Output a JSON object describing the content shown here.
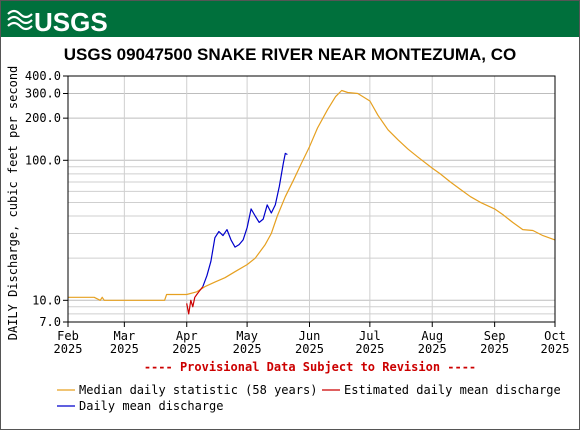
{
  "logo": {
    "text": "USGS",
    "band_color": "#00703c"
  },
  "chart_data": {
    "type": "line",
    "title": "USGS 09047500 SNAKE RIVER NEAR MONTEZUMA, CO",
    "ylabel": "DAILY Discharge, cubic feet per second",
    "y_scale": "log",
    "ylim": [
      7.0,
      400.0
    ],
    "y_ticks_labeled": [
      "400.0",
      "300.0",
      "200.0",
      "100.0",
      "10.0",
      "7.0"
    ],
    "y_tick_values": [
      400,
      300,
      200,
      100,
      10,
      7
    ],
    "y_minor_gridlines": [
      8,
      9,
      20,
      30,
      40,
      50,
      60,
      70,
      80,
      90
    ],
    "xlim": [
      "2025-02-01",
      "2025-10-01"
    ],
    "x_ticks": [
      {
        "label": "Feb",
        "year": "2025",
        "date": "2025-02-01"
      },
      {
        "label": "Mar",
        "year": "2025",
        "date": "2025-03-01"
      },
      {
        "label": "Apr",
        "year": "2025",
        "date": "2025-04-01"
      },
      {
        "label": "May",
        "year": "2025",
        "date": "2025-05-01"
      },
      {
        "label": "Jun",
        "year": "2025",
        "date": "2025-06-01"
      },
      {
        "label": "Jul",
        "year": "2025",
        "date": "2025-07-01"
      },
      {
        "label": "Aug",
        "year": "2025",
        "date": "2025-08-01"
      },
      {
        "label": "Sep",
        "year": "2025",
        "date": "2025-09-01"
      },
      {
        "label": "Oct",
        "year": "2025",
        "date": "2025-10-01"
      }
    ],
    "grid": true,
    "annotation": "---- Provisional Data Subject to Revision ----",
    "annotation_color": "#cc0000",
    "series": [
      {
        "name": "Median daily statistic (58 years)",
        "color": "#e6a020",
        "points": [
          [
            "2025-02-01",
            10.5
          ],
          [
            "2025-02-14",
            10.5
          ],
          [
            "2025-02-17",
            10.0
          ],
          [
            "2025-02-18",
            10.5
          ],
          [
            "2025-02-19",
            10.0
          ],
          [
            "2025-03-01",
            10.0
          ],
          [
            "2025-03-15",
            10.0
          ],
          [
            "2025-03-21",
            10.0
          ],
          [
            "2025-03-22",
            11.0
          ],
          [
            "2025-04-01",
            11.0
          ],
          [
            "2025-04-06",
            11.5
          ],
          [
            "2025-04-10",
            12.5
          ],
          [
            "2025-04-15",
            13.5
          ],
          [
            "2025-04-20",
            14.5
          ],
          [
            "2025-04-25",
            16.0
          ],
          [
            "2025-05-01",
            18.0
          ],
          [
            "2025-05-05",
            20.0
          ],
          [
            "2025-05-10",
            25.0
          ],
          [
            "2025-05-13",
            30.0
          ],
          [
            "2025-05-16",
            40.0
          ],
          [
            "2025-05-20",
            55.0
          ],
          [
            "2025-05-24",
            72.0
          ],
          [
            "2025-05-28",
            95.0
          ],
          [
            "2025-06-01",
            125.0
          ],
          [
            "2025-06-05",
            170.0
          ],
          [
            "2025-06-10",
            230.0
          ],
          [
            "2025-06-14",
            285.0
          ],
          [
            "2025-06-17",
            315.0
          ],
          [
            "2025-06-20",
            305.0
          ],
          [
            "2025-06-25",
            300.0
          ],
          [
            "2025-07-01",
            265.0
          ],
          [
            "2025-07-05",
            210.0
          ],
          [
            "2025-07-10",
            165.0
          ],
          [
            "2025-07-15",
            140.0
          ],
          [
            "2025-07-20",
            120.0
          ],
          [
            "2025-07-25",
            105.0
          ],
          [
            "2025-08-01",
            88.0
          ],
          [
            "2025-08-05",
            80.0
          ],
          [
            "2025-08-10",
            70.0
          ],
          [
            "2025-08-15",
            62.0
          ],
          [
            "2025-08-20",
            55.0
          ],
          [
            "2025-08-25",
            50.0
          ],
          [
            "2025-09-01",
            45.0
          ],
          [
            "2025-09-05",
            41.0
          ],
          [
            "2025-09-10",
            36.0
          ],
          [
            "2025-09-15",
            32.0
          ],
          [
            "2025-09-20",
            31.5
          ],
          [
            "2025-09-25",
            29.0
          ],
          [
            "2025-10-01",
            27.0
          ]
        ]
      },
      {
        "name": "Estimated daily mean discharge",
        "color": "#cc0000",
        "points": [
          [
            "2025-04-01",
            9.5
          ],
          [
            "2025-04-02",
            8.0
          ],
          [
            "2025-04-03",
            10.0
          ],
          [
            "2025-04-04",
            9.0
          ],
          [
            "2025-04-05",
            10.5
          ],
          [
            "2025-04-06",
            11.0
          ],
          [
            "2025-04-07",
            11.5
          ],
          [
            "2025-04-08",
            12.0
          ],
          [
            "2025-04-09",
            12.5
          ]
        ]
      },
      {
        "name": "Daily mean discharge",
        "color": "#0000cc",
        "points": [
          [
            "2025-04-09",
            12.5
          ],
          [
            "2025-04-11",
            15.0
          ],
          [
            "2025-04-13",
            19.0
          ],
          [
            "2025-04-15",
            28.0
          ],
          [
            "2025-04-17",
            31.0
          ],
          [
            "2025-04-19",
            29.0
          ],
          [
            "2025-04-21",
            32.0
          ],
          [
            "2025-04-23",
            27.0
          ],
          [
            "2025-04-25",
            24.0
          ],
          [
            "2025-04-27",
            25.0
          ],
          [
            "2025-04-29",
            27.0
          ],
          [
            "2025-05-01",
            33.0
          ],
          [
            "2025-05-03",
            45.0
          ],
          [
            "2025-05-05",
            40.0
          ],
          [
            "2025-05-07",
            36.0
          ],
          [
            "2025-05-09",
            38.0
          ],
          [
            "2025-05-11",
            48.0
          ],
          [
            "2025-05-13",
            42.0
          ],
          [
            "2025-05-15",
            48.0
          ],
          [
            "2025-05-17",
            65.0
          ],
          [
            "2025-05-19",
            95.0
          ],
          [
            "2025-05-20",
            112.0
          ],
          [
            "2025-05-21",
            110.0
          ]
        ]
      }
    ],
    "legend": {
      "placement": "bottom",
      "entries": [
        {
          "label": "Median daily statistic (58 years)",
          "color": "#e6a020"
        },
        {
          "label": "Estimated daily mean discharge",
          "color": "#cc0000"
        },
        {
          "label": "Daily mean discharge",
          "color": "#0000cc"
        }
      ]
    }
  }
}
